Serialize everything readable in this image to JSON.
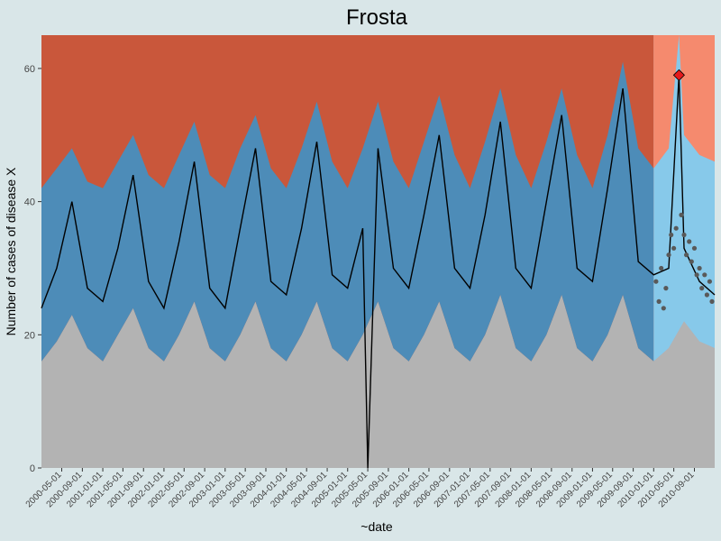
{
  "chart_data": {
    "type": "area",
    "title": "Frosta",
    "xlabel": "~date",
    "ylabel": "Number of cases of disease X",
    "xlim": [
      "2000-01-01",
      "2010-12-31"
    ],
    "ylim": [
      0,
      65
    ],
    "yticks": [
      0,
      20,
      40,
      60
    ],
    "xticks": [
      "2000-05-01",
      "2000-09-01",
      "2001-01-01",
      "2001-05-01",
      "2001-09-01",
      "2002-01-01",
      "2002-05-01",
      "2002-09-01",
      "2003-01-01",
      "2003-05-01",
      "2003-09-01",
      "2004-01-01",
      "2004-05-01",
      "2004-09-01",
      "2005-01-01",
      "2005-05-01",
      "2005-09-01",
      "2006-01-01",
      "2006-05-01",
      "2006-09-01",
      "2007-01-01",
      "2007-05-01",
      "2007-09-01",
      "2008-01-01",
      "2008-05-01",
      "2008-09-01",
      "2009-01-01",
      "2009-05-01",
      "2009-09-01",
      "2010-01-01",
      "2010-05-01",
      "2010-09-01"
    ],
    "training_end": "2010-01-01",
    "colors": {
      "background": "#d9e6e8",
      "high_zone": "#c9573b",
      "high_zone_recent": "#f58a6e",
      "band_outer": "#4d8cb8",
      "band_inner": "#5b9bc0",
      "band_recent": "#87c9ea",
      "low_zone": "#b3b3b3",
      "series_line": "#000000",
      "recent_points": "#595959",
      "alarm_marker": "#e41a1c"
    },
    "series": [
      {
        "role": "observed",
        "x": [
          "2000-01-01",
          "2000-04-01",
          "2000-07-01",
          "2000-10-01",
          "2001-01-01",
          "2001-04-01",
          "2001-07-01",
          "2001-10-01",
          "2002-01-01",
          "2002-04-01",
          "2002-07-01",
          "2002-10-01",
          "2003-01-01",
          "2003-04-01",
          "2003-07-01",
          "2003-10-01",
          "2004-01-01",
          "2004-04-01",
          "2004-07-01",
          "2004-10-01",
          "2005-01-01",
          "2005-04-01",
          "2005-05-01",
          "2005-07-01",
          "2005-10-01",
          "2006-01-01",
          "2006-04-01",
          "2006-07-01",
          "2006-10-01",
          "2007-01-01",
          "2007-04-01",
          "2007-07-01",
          "2007-10-01",
          "2008-01-01",
          "2008-04-01",
          "2008-07-01",
          "2008-10-01",
          "2009-01-01",
          "2009-04-01",
          "2009-07-01",
          "2009-10-01",
          "2010-01-01",
          "2010-04-01",
          "2010-06-01",
          "2010-07-01",
          "2010-10-01",
          "2010-12-31"
        ],
        "y": [
          24,
          30,
          40,
          27,
          25,
          33,
          44,
          28,
          24,
          34,
          46,
          27,
          24,
          36,
          48,
          28,
          26,
          36,
          49,
          29,
          27,
          36,
          0,
          48,
          30,
          27,
          38,
          50,
          30,
          27,
          38,
          52,
          30,
          27,
          40,
          53,
          30,
          28,
          42,
          57,
          31,
          29,
          30,
          59,
          33,
          28,
          26
        ]
      },
      {
        "role": "recent_observations",
        "x": [
          "2010-01-15",
          "2010-02-01",
          "2010-02-15",
          "2010-03-01",
          "2010-03-15",
          "2010-04-01",
          "2010-04-15",
          "2010-05-01",
          "2010-05-15",
          "2010-06-15",
          "2010-07-01",
          "2010-07-15",
          "2010-08-01",
          "2010-08-15",
          "2010-09-01",
          "2010-09-15",
          "2010-10-01",
          "2010-10-15",
          "2010-11-01",
          "2010-11-15",
          "2010-12-01",
          "2010-12-15"
        ],
        "y": [
          28,
          25,
          30,
          24,
          27,
          32,
          35,
          33,
          36,
          38,
          35,
          32,
          34,
          31,
          33,
          29,
          30,
          27,
          29,
          26,
          28,
          25
        ]
      },
      {
        "role": "alarm",
        "x": [
          "2010-06-01"
        ],
        "y": [
          59
        ]
      }
    ],
    "band_upper": {
      "x": [
        "2000-01-01",
        "2000-04-01",
        "2000-07-01",
        "2000-10-01",
        "2001-01-01",
        "2001-04-01",
        "2001-07-01",
        "2001-10-01",
        "2002-01-01",
        "2002-04-01",
        "2002-07-01",
        "2002-10-01",
        "2003-01-01",
        "2003-04-01",
        "2003-07-01",
        "2003-10-01",
        "2004-01-01",
        "2004-04-01",
        "2004-07-01",
        "2004-10-01",
        "2005-01-01",
        "2005-04-01",
        "2005-07-01",
        "2005-10-01",
        "2006-01-01",
        "2006-04-01",
        "2006-07-01",
        "2006-10-01",
        "2007-01-01",
        "2007-04-01",
        "2007-07-01",
        "2007-10-01",
        "2008-01-01",
        "2008-04-01",
        "2008-07-01",
        "2008-10-01",
        "2009-01-01",
        "2009-04-01",
        "2009-07-01",
        "2009-10-01",
        "2010-01-01",
        "2010-04-01",
        "2010-06-01",
        "2010-07-01",
        "2010-10-01",
        "2010-12-31"
      ],
      "y": [
        42,
        45,
        48,
        43,
        42,
        46,
        50,
        44,
        42,
        47,
        52,
        44,
        42,
        48,
        53,
        45,
        42,
        48,
        55,
        46,
        42,
        48,
        55,
        46,
        42,
        49,
        56,
        47,
        42,
        49,
        57,
        47,
        42,
        49,
        57,
        47,
        42,
        50,
        61,
        48,
        45,
        48,
        65,
        50,
        47,
        46
      ]
    },
    "band_lower": {
      "x": [
        "2000-01-01",
        "2000-04-01",
        "2000-07-01",
        "2000-10-01",
        "2001-01-01",
        "2001-04-01",
        "2001-07-01",
        "2001-10-01",
        "2002-01-01",
        "2002-04-01",
        "2002-07-01",
        "2002-10-01",
        "2003-01-01",
        "2003-04-01",
        "2003-07-01",
        "2003-10-01",
        "2004-01-01",
        "2004-04-01",
        "2004-07-01",
        "2004-10-01",
        "2005-01-01",
        "2005-04-01",
        "2005-07-01",
        "2005-10-01",
        "2006-01-01",
        "2006-04-01",
        "2006-07-01",
        "2006-10-01",
        "2007-01-01",
        "2007-04-01",
        "2007-07-01",
        "2007-10-01",
        "2008-01-01",
        "2008-04-01",
        "2008-07-01",
        "2008-10-01",
        "2009-01-01",
        "2009-04-01",
        "2009-07-01",
        "2009-10-01",
        "2010-01-01",
        "2010-04-01",
        "2010-07-01",
        "2010-10-01",
        "2010-12-31"
      ],
      "y": [
        16,
        19,
        23,
        18,
        16,
        20,
        24,
        18,
        16,
        20,
        25,
        18,
        16,
        20,
        25,
        18,
        16,
        20,
        25,
        18,
        16,
        20,
        25,
        18,
        16,
        20,
        25,
        18,
        16,
        20,
        26,
        18,
        16,
        20,
        26,
        18,
        16,
        20,
        26,
        18,
        16,
        18,
        22,
        19,
        18
      ]
    }
  }
}
